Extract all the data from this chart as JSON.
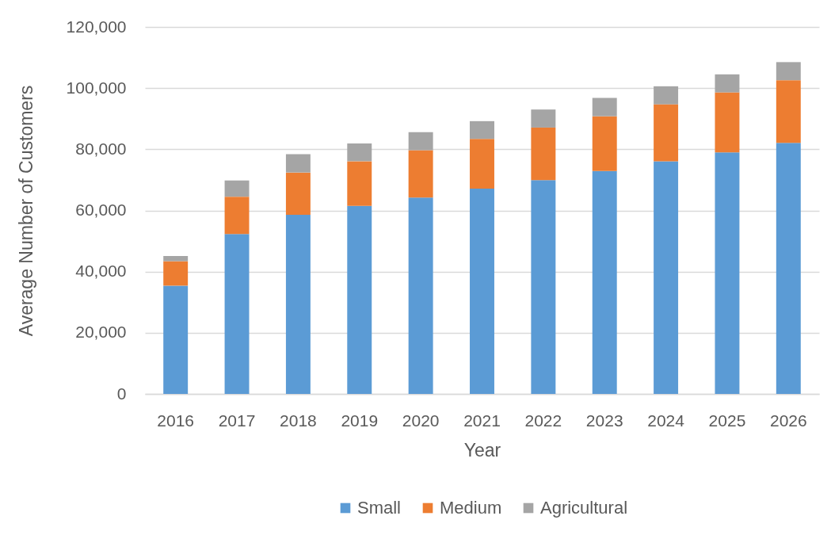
{
  "chart_data": {
    "type": "bar",
    "stacked": true,
    "xlabel": "Year",
    "ylabel": "Average Number of Customers",
    "categories": [
      "2016",
      "2017",
      "2018",
      "2019",
      "2020",
      "2021",
      "2022",
      "2023",
      "2024",
      "2025",
      "2026"
    ],
    "series": [
      {
        "name": "Small",
        "color": "#5b9bd5",
        "values": [
          35400,
          52300,
          58600,
          61500,
          64200,
          67100,
          69900,
          72900,
          76100,
          79000,
          82100
        ]
      },
      {
        "name": "Medium",
        "color": "#ed7d31",
        "values": [
          8000,
          12200,
          13800,
          14600,
          15500,
          16300,
          17200,
          17900,
          18600,
          19600,
          20500
        ]
      },
      {
        "name": "Agricultural",
        "color": "#a5a5a5",
        "values": [
          1700,
          5300,
          6000,
          5800,
          5900,
          5800,
          5900,
          6000,
          5900,
          5900,
          5900
        ]
      }
    ],
    "ylim": [
      0,
      120000
    ],
    "yticks": [
      0,
      {
        "value": 20000,
        "label": "20,000"
      },
      {
        "value": 40000,
        "label": "40,000"
      },
      {
        "value": 60000,
        "label": "60,000"
      },
      {
        "value": 80000,
        "label": "80,000"
      },
      {
        "value": 100000,
        "label": "100,000"
      },
      {
        "value": 120000,
        "label": "120,000"
      }
    ],
    "grid": "y",
    "legend": "bottom"
  }
}
